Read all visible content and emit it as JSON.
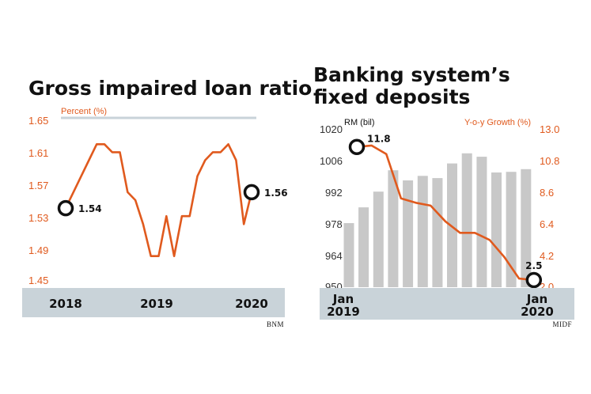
{
  "chart_data": [
    {
      "type": "line",
      "title": "Gross impaired loan ratio",
      "ylabel": "Percent (%)",
      "ylim": [
        1.45,
        1.65
      ],
      "yticks": [
        "1.65",
        "1.61",
        "1.57",
        "1.53",
        "1.49",
        "1.45"
      ],
      "xticks": [
        "2018",
        "2019",
        "2020"
      ],
      "series": [
        {
          "values": [
            1.54,
            1.56,
            1.58,
            1.6,
            1.62,
            1.62,
            1.61,
            1.61,
            1.56,
            1.55,
            1.52,
            1.48,
            1.48,
            1.53,
            1.48,
            1.53,
            1.53,
            1.58,
            1.6,
            1.61,
            1.61,
            1.62,
            1.6,
            1.52,
            1.56
          ]
        }
      ],
      "annotations": {
        "start": "1.54",
        "end": "1.56"
      },
      "source": "BNM"
    },
    {
      "type": "bar",
      "title": "Banking system's fixed deposits",
      "ylabel": "RM (bil)",
      "y2label": "Y-o-y Growth (%)",
      "ylim": [
        950,
        1020
      ],
      "y2lim": [
        2.0,
        13.0
      ],
      "yticks": [
        "1020",
        "1006",
        "992",
        "978",
        "964",
        "950"
      ],
      "y2ticks": [
        "13.0",
        "10.8",
        "8.6",
        "6.4",
        "4.2",
        "2.0"
      ],
      "xticks": [
        {
          "top": "Jan",
          "bottom": "2019"
        },
        {
          "top": "Jan",
          "bottom": "2020"
        }
      ],
      "series": [
        {
          "values": [
            978.5,
            985.5,
            992.5,
            1002,
            997.5,
            999.5,
            998.5,
            1005,
            1009.5,
            1008,
            1001,
            1001.3,
            1002.5
          ]
        },
        {
          "values": [
            11.8,
            11.9,
            11.3,
            8.2,
            7.9,
            7.7,
            6.6,
            5.8,
            5.8,
            5.3,
            4.1,
            2.6,
            2.5
          ]
        }
      ],
      "annotations": {
        "start": "11.8",
        "end": "2.5"
      },
      "source": "MIDF"
    }
  ],
  "colors": {
    "line": "#e05a1e",
    "bar": "#c8c8c8",
    "band": "#c9d3d9",
    "accent": "#e05a1e"
  }
}
